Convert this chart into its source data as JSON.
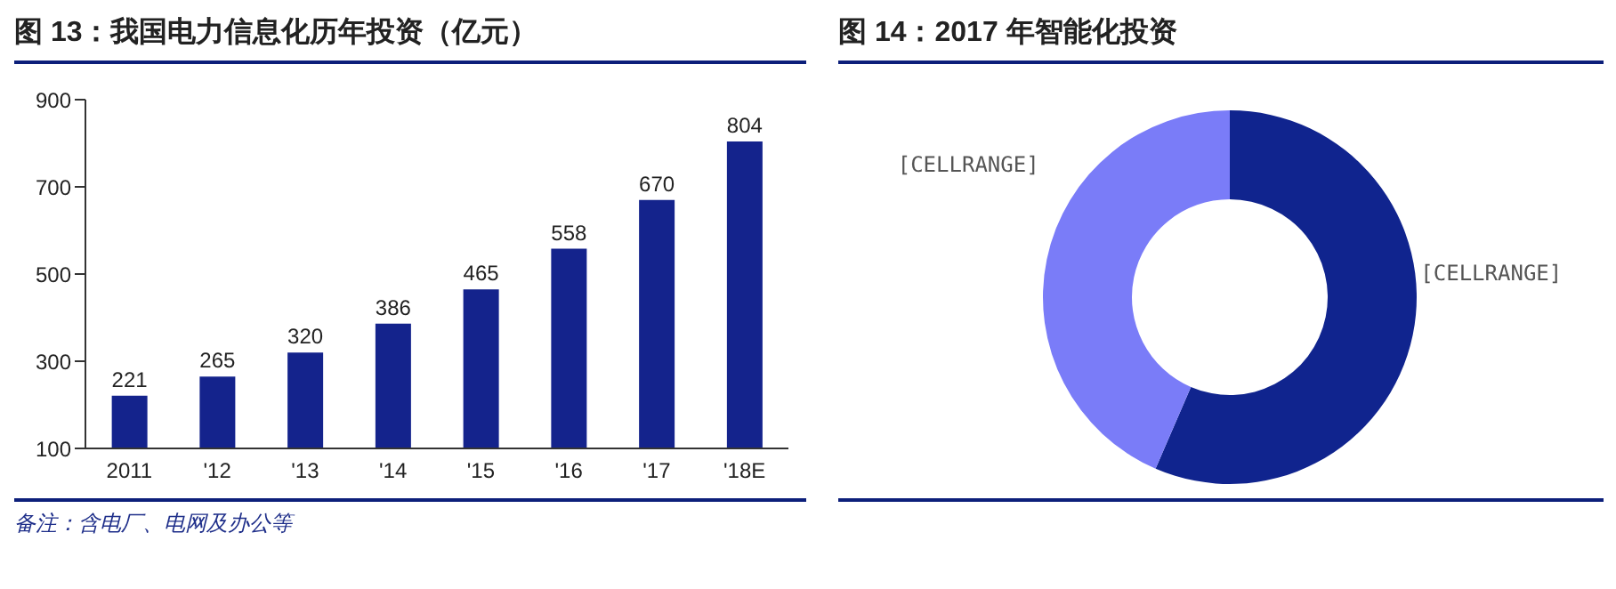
{
  "chart_data": [
    {
      "type": "bar",
      "title": "图 13：我国电力信息化历年投资（亿元）",
      "categories": [
        "2011",
        "'12",
        "'13",
        "'14",
        "'15",
        "'16",
        "'17",
        "'18E"
      ],
      "values": [
        221,
        265,
        320,
        386,
        465,
        558,
        670,
        804
      ],
      "color": "#14238c",
      "ylim": [
        100,
        900
      ],
      "yticks": [
        100,
        300,
        500,
        700,
        900
      ],
      "grid": false,
      "data_labels": true,
      "annotations": [
        "备注：含电厂、电网及办公等"
      ]
    },
    {
      "type": "donut",
      "title": "图 14：2017 年智能化投资",
      "categories": [
        "[CELLRANGE]",
        "[CELLRANGE]"
      ],
      "values": [
        56.5,
        43.5
      ],
      "colors": [
        "#10248e",
        "#7a7cf8"
      ],
      "legend": false
    }
  ]
}
